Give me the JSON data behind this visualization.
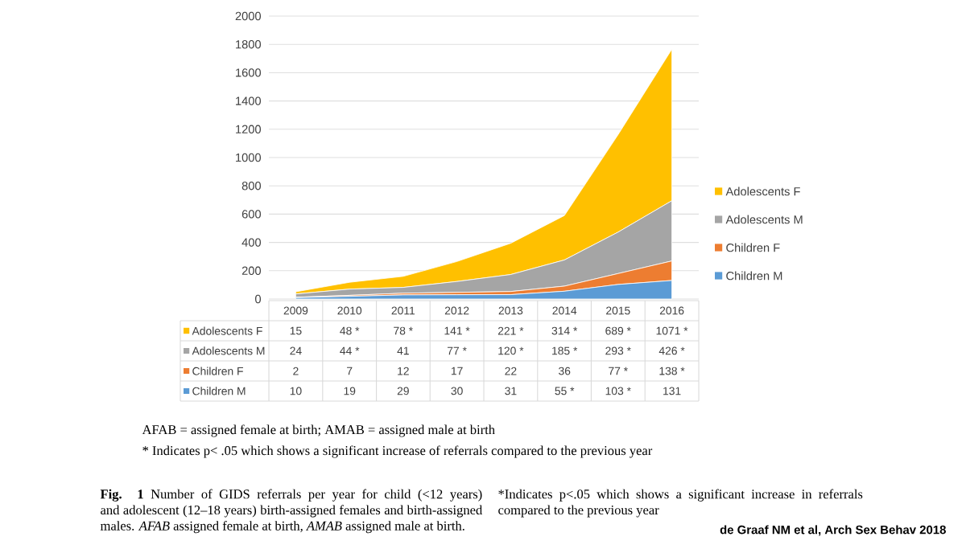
{
  "chart_data": {
    "type": "area",
    "stacked": true,
    "grid": "y",
    "legend": "right",
    "categories": [
      "2009",
      "2010",
      "2011",
      "2012",
      "2013",
      "2014",
      "2015",
      "2016"
    ],
    "ylim": [
      0,
      2000
    ],
    "yticks": [
      0,
      200,
      400,
      600,
      800,
      1000,
      1200,
      1400,
      1600,
      1800,
      2000
    ],
    "series": [
      {
        "name": "Children M",
        "color": "#5b9bd5",
        "values": [
          10,
          19,
          29,
          30,
          31,
          55,
          103,
          131
        ],
        "value_labels": [
          "10",
          "19",
          "29",
          "30",
          "31",
          "55 *",
          "103 *",
          "131"
        ]
      },
      {
        "name": "Children F",
        "color": "#ed7d31",
        "values": [
          2,
          7,
          12,
          17,
          22,
          36,
          77,
          138
        ],
        "value_labels": [
          "2",
          "7",
          "12",
          "17",
          "22",
          "36",
          "77 *",
          "138 *"
        ]
      },
      {
        "name": "Adolescents M",
        "color": "#a5a5a5",
        "values": [
          24,
          44,
          41,
          77,
          120,
          185,
          293,
          426
        ],
        "value_labels": [
          "24",
          "44 *",
          "41",
          "77 *",
          "120 *",
          "185 *",
          "293 *",
          "426 *"
        ]
      },
      {
        "name": "Adolescents F",
        "color": "#ffc000",
        "values": [
          15,
          48,
          78,
          141,
          221,
          314,
          689,
          1071
        ],
        "value_labels": [
          "15",
          "48 *",
          "78 *",
          "141 *",
          "221 *",
          "314 *",
          "689 *",
          "1071 *"
        ]
      }
    ],
    "annotations": [
      "AFAB = assigned female at birth; AMAB = assigned male at birth",
      "* Indicates p< .05 which shows a significant increase of referrals compared to the previous year",
      "**Fig. 1** Number of GIDS referrals per year for child (<12 years) and adolescent (12–18 years) birth-assigned females and birth-assigned males. *AFAB* assigned female at birth, *AMAB* assigned male at birth.",
      "*Indicates p<.05 which shows a significant increase in referrals compared to the previous year",
      "**de Graaf NM et al, Arch Sex Behav 2018**"
    ]
  }
}
